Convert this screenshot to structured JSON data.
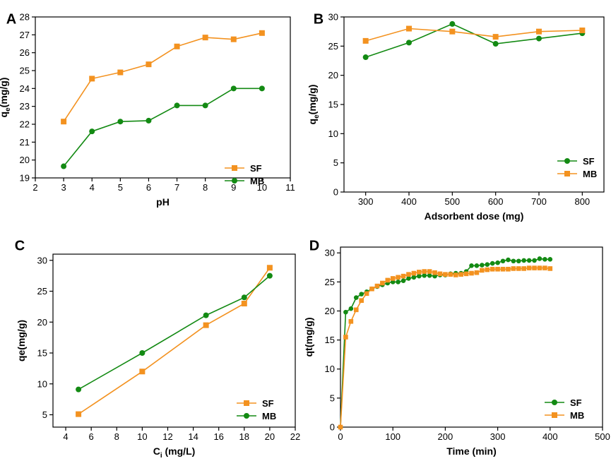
{
  "colors": {
    "orange": "#f39220",
    "green": "#138a13",
    "axis": "#000000"
  },
  "chart_data": [
    {
      "panel": "A",
      "type": "line",
      "xlabel": "pH",
      "ylabel": "q",
      "ylabel_sub": "e",
      "ylabel_unit": "(mg/g)",
      "xlim": [
        2,
        11
      ],
      "ylim": [
        19,
        28
      ],
      "xticks": [
        2,
        3,
        4,
        5,
        6,
        7,
        8,
        9,
        10,
        11
      ],
      "yticks": [
        19,
        20,
        21,
        22,
        23,
        24,
        25,
        26,
        27,
        28
      ],
      "legend_position": "bottom-right",
      "series": [
        {
          "name": "SF",
          "color": "#f39220",
          "marker": "square",
          "x": [
            3,
            4,
            5,
            6,
            7,
            8,
            9,
            10
          ],
          "y": [
            22.15,
            24.55,
            24.9,
            25.35,
            26.35,
            26.85,
            26.75,
            27.1
          ]
        },
        {
          "name": "MB",
          "color": "#138a13",
          "marker": "circle",
          "x": [
            3,
            4,
            5,
            6,
            7,
            8,
            9,
            10
          ],
          "y": [
            19.65,
            21.6,
            22.15,
            22.2,
            23.05,
            23.05,
            24.0,
            24.0
          ]
        }
      ]
    },
    {
      "panel": "B",
      "type": "line",
      "xlabel": "Adsorbent dose (mg)",
      "ylabel": "q",
      "ylabel_sub": "e",
      "ylabel_unit": "(mg/g)",
      "xlim": [
        250,
        850
      ],
      "ylim": [
        0,
        30
      ],
      "xticks": [
        300,
        400,
        500,
        600,
        700,
        800
      ],
      "yticks": [
        0,
        5,
        10,
        15,
        20,
        25,
        30
      ],
      "legend_position": "bottom-right",
      "series": [
        {
          "name": "SF",
          "color": "#138a13",
          "marker": "circle",
          "x": [
            300,
            400,
            500,
            600,
            700,
            800
          ],
          "y": [
            23.1,
            25.6,
            28.8,
            25.4,
            26.3,
            27.2
          ]
        },
        {
          "name": "MB",
          "color": "#f39220",
          "marker": "square",
          "x": [
            300,
            400,
            500,
            600,
            700,
            800
          ],
          "y": [
            25.9,
            28.0,
            27.5,
            26.6,
            27.5,
            27.7
          ]
        }
      ]
    },
    {
      "panel": "C",
      "type": "line",
      "xlabel": "C",
      "xlabel_sub": "i",
      "xlabel_unit": " (mg/L)",
      "ylabel": "qe(mg/g)",
      "xlim": [
        3,
        22
      ],
      "ylim": [
        3,
        31
      ],
      "xticks": [
        4,
        6,
        8,
        10,
        12,
        14,
        16,
        18,
        20,
        22
      ],
      "yticks": [
        5,
        10,
        15,
        20,
        25,
        30
      ],
      "legend_position": "bottom-right",
      "series": [
        {
          "name": "SF",
          "color": "#f39220",
          "marker": "square",
          "x": [
            5,
            10,
            15,
            18,
            20
          ],
          "y": [
            5.1,
            12.0,
            19.5,
            23.0,
            28.8
          ]
        },
        {
          "name": "MB",
          "color": "#138a13",
          "marker": "circle",
          "x": [
            5,
            10,
            15,
            18,
            20
          ],
          "y": [
            9.1,
            15.0,
            21.1,
            24.0,
            27.5
          ]
        }
      ]
    },
    {
      "panel": "D",
      "type": "line",
      "xlabel": "Time (min)",
      "ylabel": "qt(mg/g)",
      "xlim": [
        0,
        500
      ],
      "ylim": [
        0,
        31
      ],
      "xticks": [
        0,
        100,
        200,
        300,
        400,
        500
      ],
      "yticks": [
        0,
        5,
        10,
        15,
        20,
        25,
        30
      ],
      "legend_position": "bottom-right",
      "series": [
        {
          "name": "SF",
          "color": "#138a13",
          "marker": "circle",
          "x": [
            0,
            10,
            20,
            30,
            40,
            50,
            60,
            70,
            80,
            90,
            100,
            110,
            120,
            130,
            140,
            150,
            160,
            170,
            180,
            190,
            200,
            210,
            220,
            230,
            240,
            250,
            260,
            270,
            280,
            290,
            300,
            310,
            320,
            330,
            340,
            350,
            360,
            370,
            380,
            390,
            400
          ],
          "y": [
            0,
            19.8,
            20.4,
            22.3,
            22.9,
            23.3,
            23.8,
            24.2,
            24.5,
            24.8,
            25.0,
            25.0,
            25.2,
            25.6,
            25.8,
            26.0,
            26.1,
            26.1,
            26.0,
            26.2,
            26.2,
            26.4,
            26.5,
            26.5,
            26.8,
            27.8,
            27.8,
            27.9,
            28.0,
            28.2,
            28.3,
            28.6,
            28.8,
            28.6,
            28.6,
            28.7,
            28.7,
            28.7,
            29.0,
            28.9,
            28.9
          ]
        },
        {
          "name": "MB",
          "color": "#f39220",
          "marker": "square",
          "x": [
            0,
            10,
            20,
            30,
            40,
            50,
            60,
            70,
            80,
            90,
            100,
            110,
            120,
            130,
            140,
            150,
            160,
            170,
            180,
            190,
            200,
            210,
            220,
            230,
            240,
            250,
            260,
            270,
            280,
            290,
            300,
            310,
            320,
            330,
            340,
            350,
            360,
            370,
            380,
            390,
            400
          ],
          "y": [
            0,
            15.5,
            18.2,
            20.2,
            21.8,
            23.0,
            23.8,
            24.3,
            24.8,
            25.3,
            25.6,
            25.8,
            26.0,
            26.3,
            26.5,
            26.7,
            26.8,
            26.8,
            26.6,
            26.4,
            26.3,
            26.3,
            26.2,
            26.3,
            26.4,
            26.5,
            26.6,
            27.0,
            27.1,
            27.2,
            27.2,
            27.2,
            27.2,
            27.3,
            27.3,
            27.3,
            27.4,
            27.4,
            27.4,
            27.4,
            27.3
          ]
        }
      ]
    }
  ]
}
